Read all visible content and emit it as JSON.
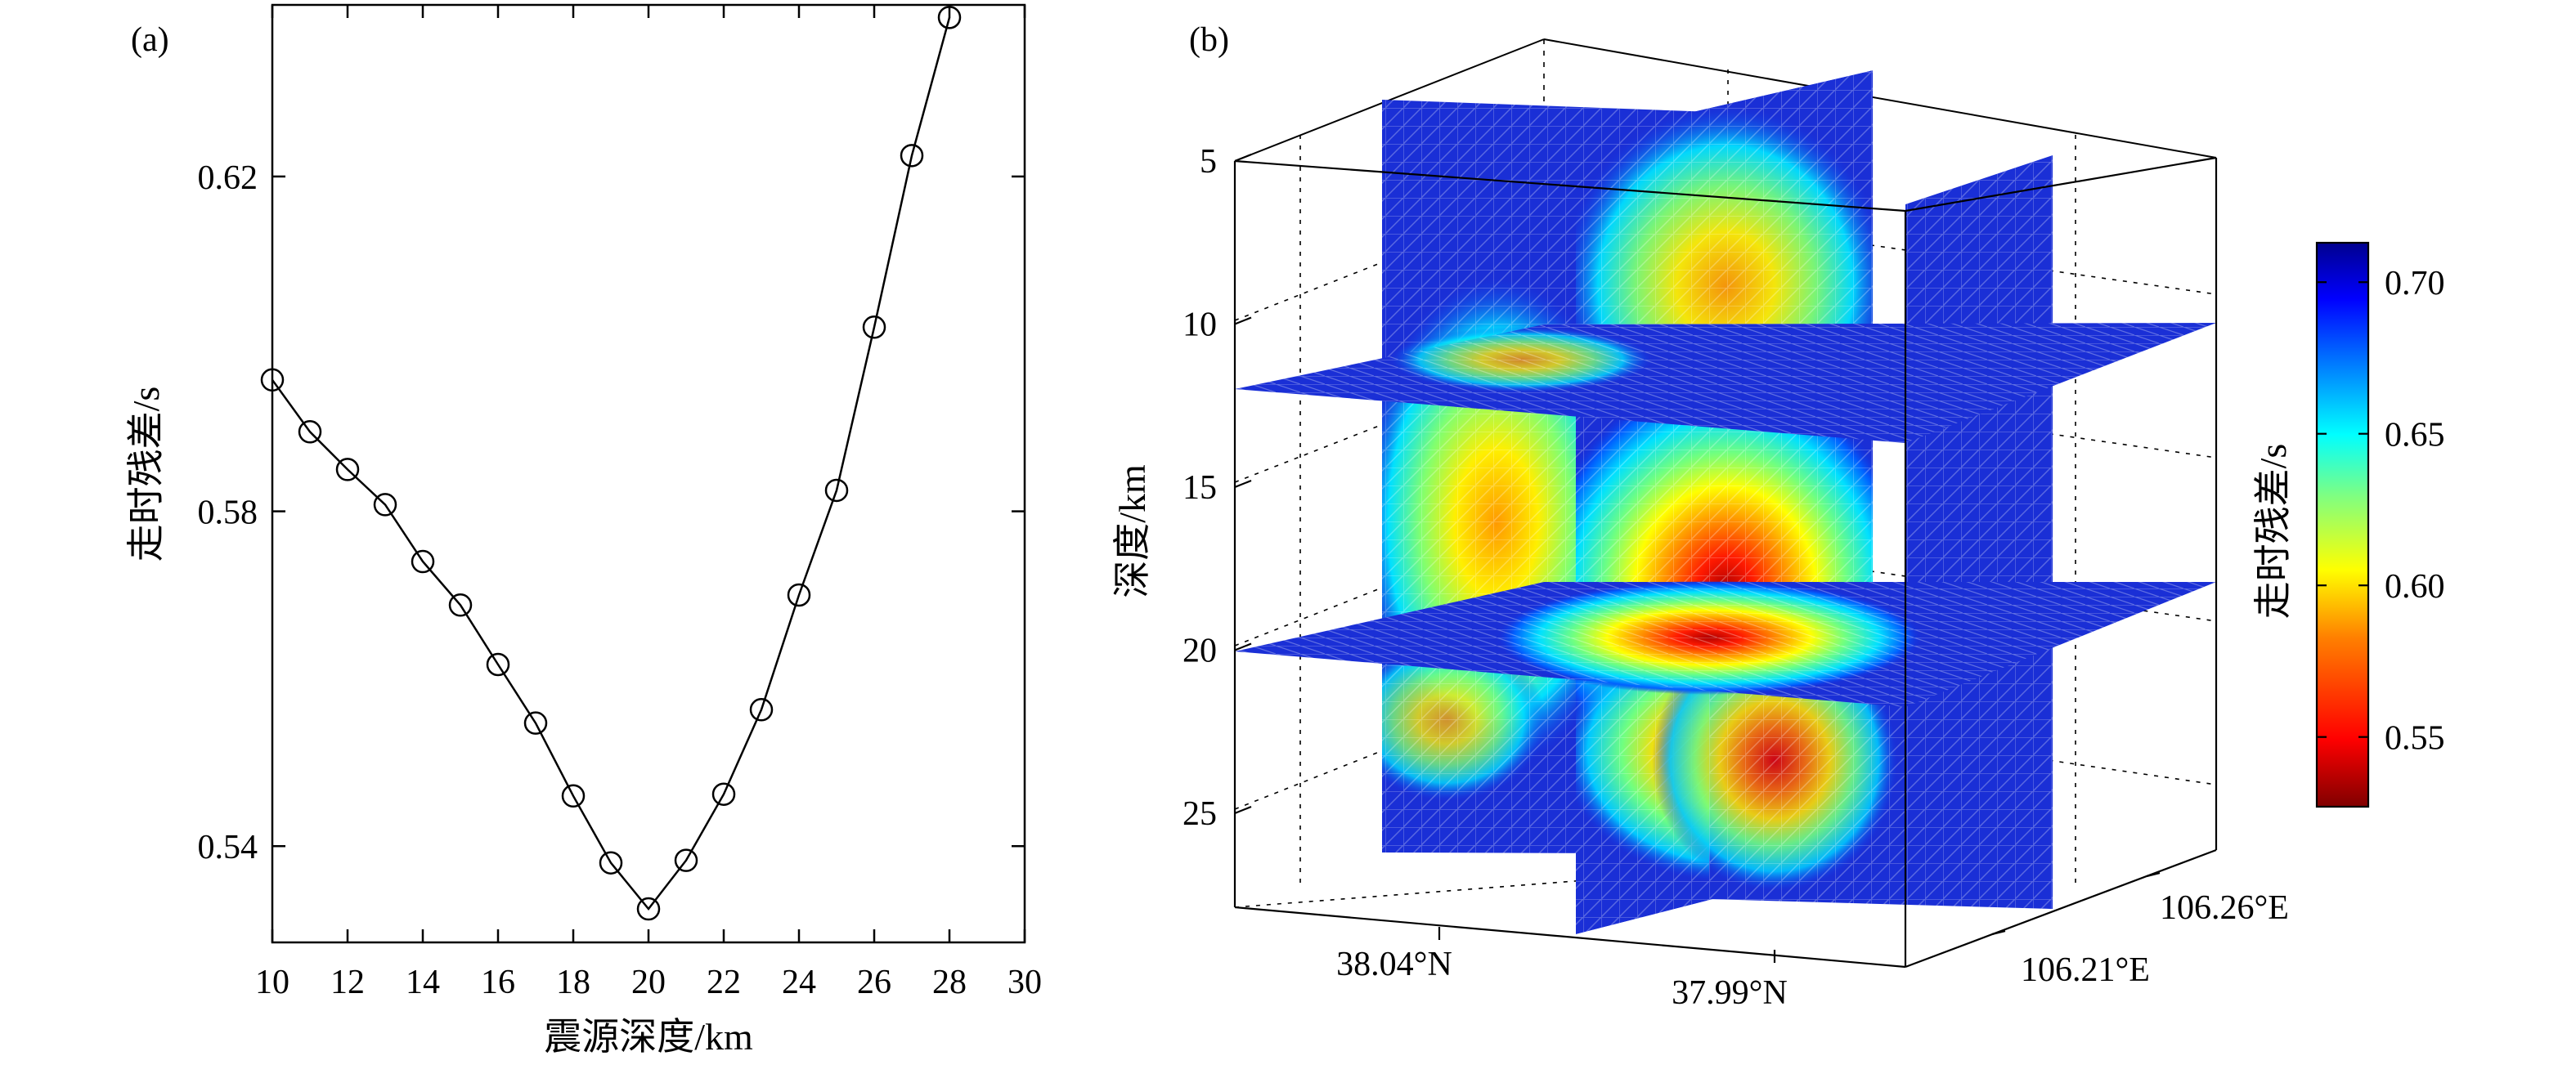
{
  "chart_data": [
    {
      "panel_label": "(a)",
      "type": "line",
      "xlabel": "震源深度/km",
      "ylabel": "走时残差/s",
      "xlim": [
        10,
        30
      ],
      "ylim": [
        0.5285,
        0.6405
      ],
      "x_ticks": [
        "10",
        "12",
        "14",
        "16",
        "18",
        "20",
        "22",
        "24",
        "26",
        "28",
        "30"
      ],
      "y_ticks": [
        "0.54",
        "0.58",
        "0.62"
      ],
      "marker": "open-circle",
      "series": [
        {
          "x": [
            10,
            11,
            12,
            13,
            14,
            15,
            16,
            17,
            18,
            19,
            20,
            21,
            22,
            23,
            24,
            25,
            26,
            27,
            28
          ],
          "values": [
            0.5957,
            0.5895,
            0.585,
            0.5808,
            0.574,
            0.5688,
            0.5617,
            0.5547,
            0.546,
            0.538,
            0.5325,
            0.5383,
            0.5462,
            0.5563,
            0.57,
            0.5825,
            0.602,
            0.6225,
            0.639
          ]
        }
      ],
      "grid": false
    },
    {
      "panel_label": "(b)",
      "type": "heatmap",
      "description_kind": "3D slice volume",
      "zlabel": "深度/km",
      "z_ticks": [
        "5",
        "10",
        "15",
        "20",
        "25"
      ],
      "x_ticks": [
        "38.04°N",
        "37.99°N"
      ],
      "y_ticks": [
        "106.21°E",
        "106.26°E"
      ],
      "colorbar": {
        "label": "走时残差/s",
        "range": [
          0.527,
          0.713
        ],
        "ticks": [
          "0.55",
          "0.60",
          "0.65",
          "0.70"
        ],
        "colormap": "jet-reversed",
        "colors": [
          "#800000",
          "#ff0000",
          "#ff8000",
          "#ffff00",
          "#80ff80",
          "#00ffff",
          "#0080ff",
          "#0000ff",
          "#00008f"
        ]
      },
      "minimum": {
        "depth_km": 18,
        "value": 0.53
      },
      "grid": true
    }
  ]
}
